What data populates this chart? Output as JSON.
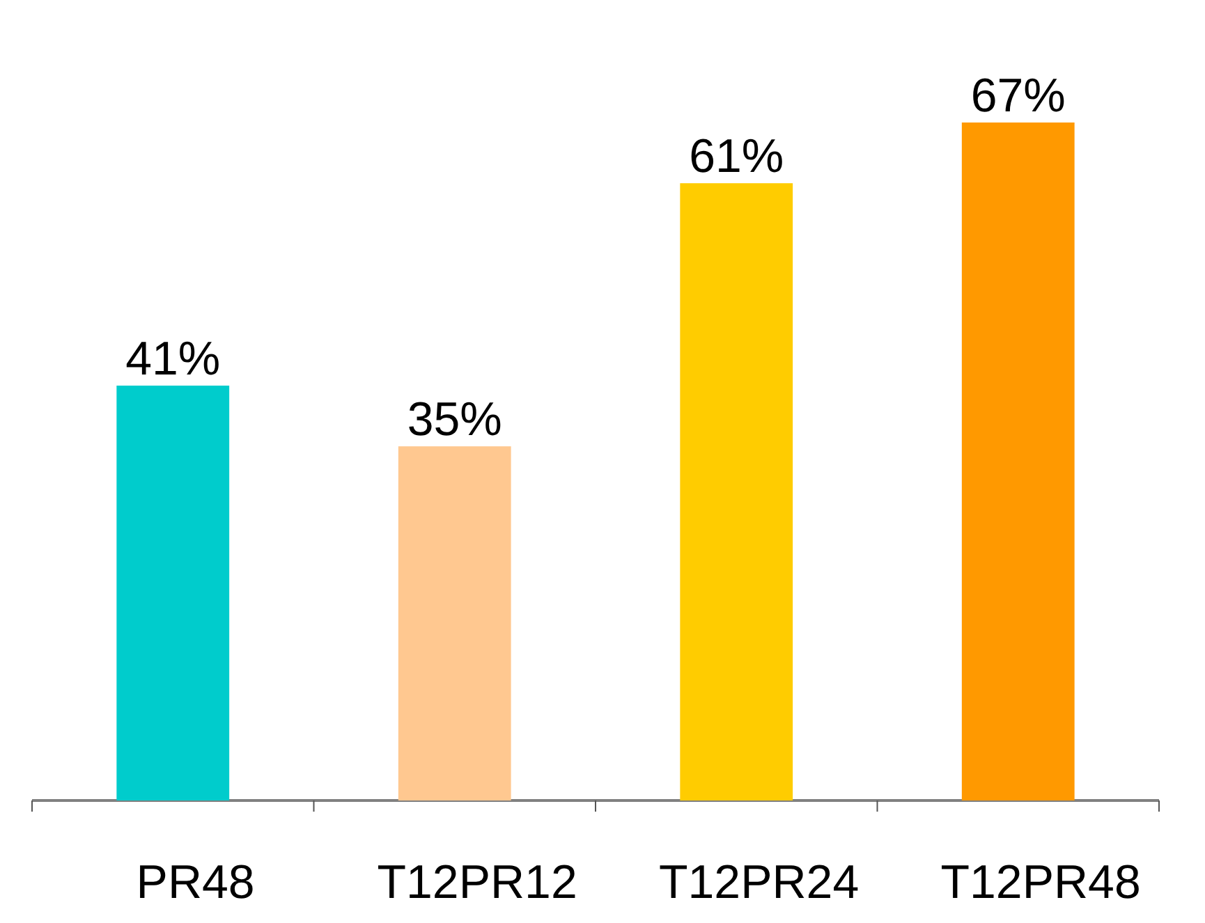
{
  "chart_data": {
    "type": "bar",
    "categories": [
      "PR48",
      "T12PR12",
      "T12PR24",
      "T12PR48"
    ],
    "values": [
      41,
      35,
      61,
      67
    ],
    "colors": [
      "#00cccc",
      "#ffc890",
      "#ffcc00",
      "#ff9900"
    ],
    "value_labels": [
      "41%",
      "35%",
      "61%",
      "67%"
    ]
  }
}
